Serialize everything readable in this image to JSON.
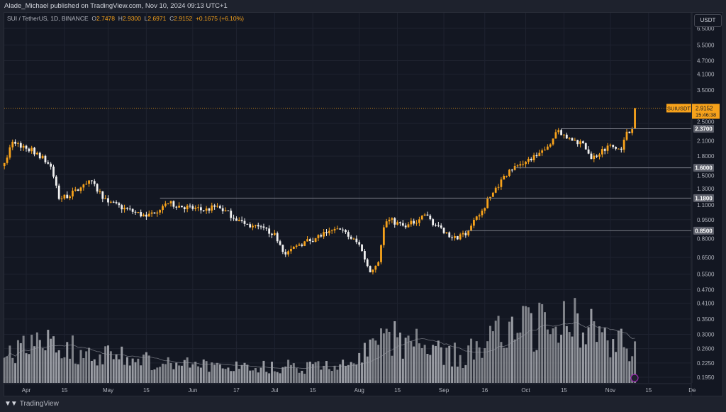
{
  "header": {
    "published": "Alade_Michael published on TradingView.com, Nov 10, 2024 09:13 UTC+1"
  },
  "legend": {
    "symbol": "SUI / TetherUS, 1D, BINANCE",
    "o_label": "O",
    "o": "2.7478",
    "h_label": "H",
    "h": "2.9300",
    "l_label": "L",
    "l": "2.6971",
    "c_label": "C",
    "c": "2.9152",
    "change": "+0.1675 (+6.10%)"
  },
  "currency_button": "USDT",
  "footer": {
    "brand": "TradingView"
  },
  "colors": {
    "up": "#f7a21b",
    "down": "#f0f0f0",
    "bg": "#131722",
    "grid": "#1f2330"
  },
  "chart_data": {
    "type": "candlestick",
    "symbol": "SUIUSDT",
    "scale": "log",
    "ylim": [
      0.195,
      6.5
    ],
    "price_ticks": [
      "6.5000",
      "5.5000",
      "4.7000",
      "4.1000",
      "3.5000",
      "2.5000",
      "2.1000",
      "1.8000",
      "1.5000",
      "1.3000",
      "1.1000",
      "0.9500",
      "0.8000",
      "0.6500",
      "0.5500",
      "0.4700",
      "0.4100",
      "0.3500",
      "0.3000",
      "0.2600",
      "0.2250",
      "0.1950"
    ],
    "time_ticks": [
      {
        "label": "Apr",
        "day": 0
      },
      {
        "label": "15",
        "day": 14
      },
      {
        "label": "May",
        "day": 30
      },
      {
        "label": "15",
        "day": 44
      },
      {
        "label": "Jun",
        "day": 61
      },
      {
        "label": "17",
        "day": 77
      },
      {
        "label": "Jul",
        "day": 91
      },
      {
        "label": "15",
        "day": 105
      },
      {
        "label": "Aug",
        "day": 122
      },
      {
        "label": "15",
        "day": 136
      },
      {
        "label": "Sep",
        "day": 153
      },
      {
        "label": "16",
        "day": 168
      },
      {
        "label": "Oct",
        "day": 183
      },
      {
        "label": "15",
        "day": 197
      },
      {
        "label": "Nov",
        "day": 214
      },
      {
        "label": "15",
        "day": 228
      },
      {
        "label": "De",
        "day": 244
      }
    ],
    "last_price": {
      "label": "SUIUSDT",
      "value": "2.9152",
      "countdown": "15:46:38"
    },
    "levels": [
      {
        "value": "2.3700",
        "from_day": 196
      },
      {
        "value": "1.6000",
        "from_day": 179
      },
      {
        "value": "1.1800",
        "from_day": 49
      },
      {
        "value": "0.8500",
        "from_day": 161
      }
    ],
    "close_keypoints_day_price": [
      [
        -8,
        1.68
      ],
      [
        -5,
        2.08
      ],
      [
        4,
        1.86
      ],
      [
        9,
        1.62
      ],
      [
        12,
        1.17
      ],
      [
        19,
        1.27
      ],
      [
        23,
        1.41
      ],
      [
        30,
        1.13
      ],
      [
        44,
        0.98
      ],
      [
        50,
        1.09
      ],
      [
        52,
        1.12
      ],
      [
        65,
        1.04
      ],
      [
        70,
        1.09
      ],
      [
        80,
        0.91
      ],
      [
        91,
        0.83
      ],
      [
        95,
        0.67
      ],
      [
        100,
        0.74
      ],
      [
        110,
        0.83
      ],
      [
        115,
        0.86
      ],
      [
        122,
        0.74
      ],
      [
        126,
        0.56
      ],
      [
        129,
        0.62
      ],
      [
        131,
        0.88
      ],
      [
        133,
        0.95
      ],
      [
        139,
        0.88
      ],
      [
        146,
        1.0
      ],
      [
        153,
        0.83
      ],
      [
        158,
        0.78
      ],
      [
        162,
        0.85
      ],
      [
        167,
        1.04
      ],
      [
        172,
        1.31
      ],
      [
        177,
        1.57
      ],
      [
        183,
        1.7
      ],
      [
        190,
        1.92
      ],
      [
        195,
        2.34
      ],
      [
        198,
        2.15
      ],
      [
        204,
        2.05
      ],
      [
        207,
        1.75
      ],
      [
        213,
        2.0
      ],
      [
        218,
        1.92
      ],
      [
        220,
        2.3
      ],
      [
        222,
        2.37
      ],
      [
        223,
        2.9152
      ]
    ],
    "volume_keypoints_day_rel": [
      [
        -8,
        0.35
      ],
      [
        10,
        0.45
      ],
      [
        30,
        0.3
      ],
      [
        60,
        0.2
      ],
      [
        90,
        0.18
      ],
      [
        120,
        0.2
      ],
      [
        128,
        0.6
      ],
      [
        140,
        0.45
      ],
      [
        160,
        0.3
      ],
      [
        175,
        0.6
      ],
      [
        190,
        0.65
      ],
      [
        200,
        0.7
      ],
      [
        215,
        0.5
      ],
      [
        223,
        0.4
      ]
    ]
  }
}
